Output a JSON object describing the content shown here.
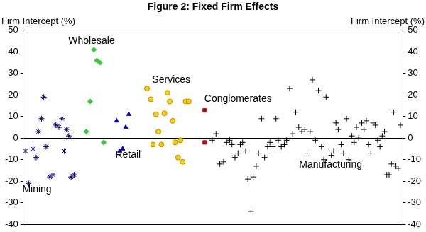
{
  "chart_data": {
    "type": "scatter",
    "title": "Figure 2: Fixed Firm Effects",
    "y_label": "Firm Intercept (%)",
    "y2_label": "Firm Intercept (%)",
    "xlim": [
      0,
      100
    ],
    "ylim": [
      -40,
      50
    ],
    "yticks": [
      -40,
      -30,
      -20,
      -10,
      0,
      10,
      20,
      30,
      40,
      50
    ],
    "y2lim": [
      -40,
      50
    ],
    "y2ticks": [
      -40,
      -30,
      -20,
      -10,
      0,
      10,
      20,
      30,
      40,
      50
    ],
    "grid": false,
    "tick_labels": "y",
    "series": [
      {
        "name": "Mining",
        "color": "#000066",
        "marker": "star",
        "x": [
          0.6,
          1.4,
          2.6,
          3.4,
          4,
          4.8,
          5.4,
          6,
          7,
          7.8,
          8.6,
          9.4,
          10.2,
          10.8,
          11.4,
          12,
          12.6,
          13.4
        ],
        "values": [
          -6,
          -21,
          -5,
          -9,
          3,
          9,
          19,
          -4,
          -18,
          -17,
          6,
          5,
          9,
          -6,
          4,
          1,
          -18,
          -17
        ]
      },
      {
        "name": "Wholesale",
        "color": "#33cc33",
        "marker": "diamond",
        "x": [
          16.6,
          17.6,
          18.6,
          19.4,
          20.2,
          21.2
        ],
        "values": [
          3,
          17,
          41,
          36,
          35,
          -2
        ]
      },
      {
        "name": "Retail",
        "color": "#0000cc",
        "marker": "triangle",
        "x": [
          24.6,
          25.4,
          26.2,
          27,
          27.8
        ],
        "values": [
          8,
          -6,
          -5,
          5,
          11
        ]
      },
      {
        "name": "Services",
        "color": "#ffcc00",
        "marker": "circle",
        "x": [
          32.6,
          33.6,
          34.2,
          35,
          35.6,
          36.4,
          37.2,
          38,
          38.6,
          39.4,
          40,
          40.8,
          41.4,
          42,
          42.8,
          43.6
        ],
        "values": [
          23,
          18,
          -3,
          11,
          3,
          -3,
          11.5,
          21,
          17,
          8,
          -2,
          -9,
          -1,
          -11,
          17,
          17
        ]
      },
      {
        "name": "Conglomerates",
        "color": "#cc0000",
        "marker": "square",
        "x": [
          47.8,
          47.8
        ],
        "values": [
          13,
          -2
        ]
      },
      {
        "name": "Manufacturing",
        "color": "#000000",
        "marker": "plus",
        "x": [
          49.8,
          50.8,
          51.8,
          52.8,
          53.6,
          54.4,
          55,
          55.8,
          56.6,
          57.2,
          57.8,
          58.6,
          59.2,
          60,
          60.6,
          61.4,
          62,
          62.8,
          63.6,
          64.4,
          65,
          65.8,
          66.6,
          67.2,
          68,
          68.8,
          69.4,
          70.2,
          71,
          71.8,
          72.6,
          73.4,
          74.2,
          74.8,
          75.6,
          76.2,
          77,
          77.8,
          78.6,
          79.2,
          79.8,
          80.6,
          81.2,
          81.8,
          82.4,
          83,
          83.8,
          84.4,
          85.2,
          85.8,
          86.6,
          87.2,
          87.8,
          88.4,
          89.2,
          89.8,
          90.4,
          91,
          91.6,
          92.2,
          92.8,
          93.4,
          94,
          94.6,
          95.2,
          95.8,
          96.4,
          97,
          97.6,
          98.2,
          98.8,
          99.4
        ],
        "values": [
          -1,
          2,
          -12,
          -11,
          -2,
          -1,
          -3,
          -9,
          -7,
          -3,
          -2,
          -6,
          -19,
          -34,
          -18,
          -13,
          -7,
          9,
          -9,
          -4,
          -2,
          -4,
          9,
          -1,
          -4,
          -3,
          -1,
          23,
          2,
          12,
          5,
          3,
          4,
          -7,
          3,
          27,
          -1,
          22,
          -4,
          -10,
          19,
          -5,
          -8,
          -6,
          7,
          4,
          -3,
          -7,
          9,
          -10,
          1,
          -2,
          5,
          0,
          7,
          4,
          8,
          -3,
          -7,
          7,
          6,
          -1,
          -4,
          1,
          3,
          -17,
          -17,
          -12,
          12,
          -13,
          -14,
          6
        ]
      }
    ],
    "annotations": [
      {
        "text": "Mining",
        "x": 3.6,
        "y": -24
      },
      {
        "text": "Wholesale",
        "x": 18,
        "y": 45
      },
      {
        "text": "Retail",
        "x": 27.6,
        "y": -8
      },
      {
        "text": "Services",
        "x": 39,
        "y": 27
      },
      {
        "text": "Conglomerates",
        "x": 56.6,
        "y": 18
      },
      {
        "text": "Manufacturing",
        "x": 81,
        "y": -12.5
      }
    ]
  }
}
